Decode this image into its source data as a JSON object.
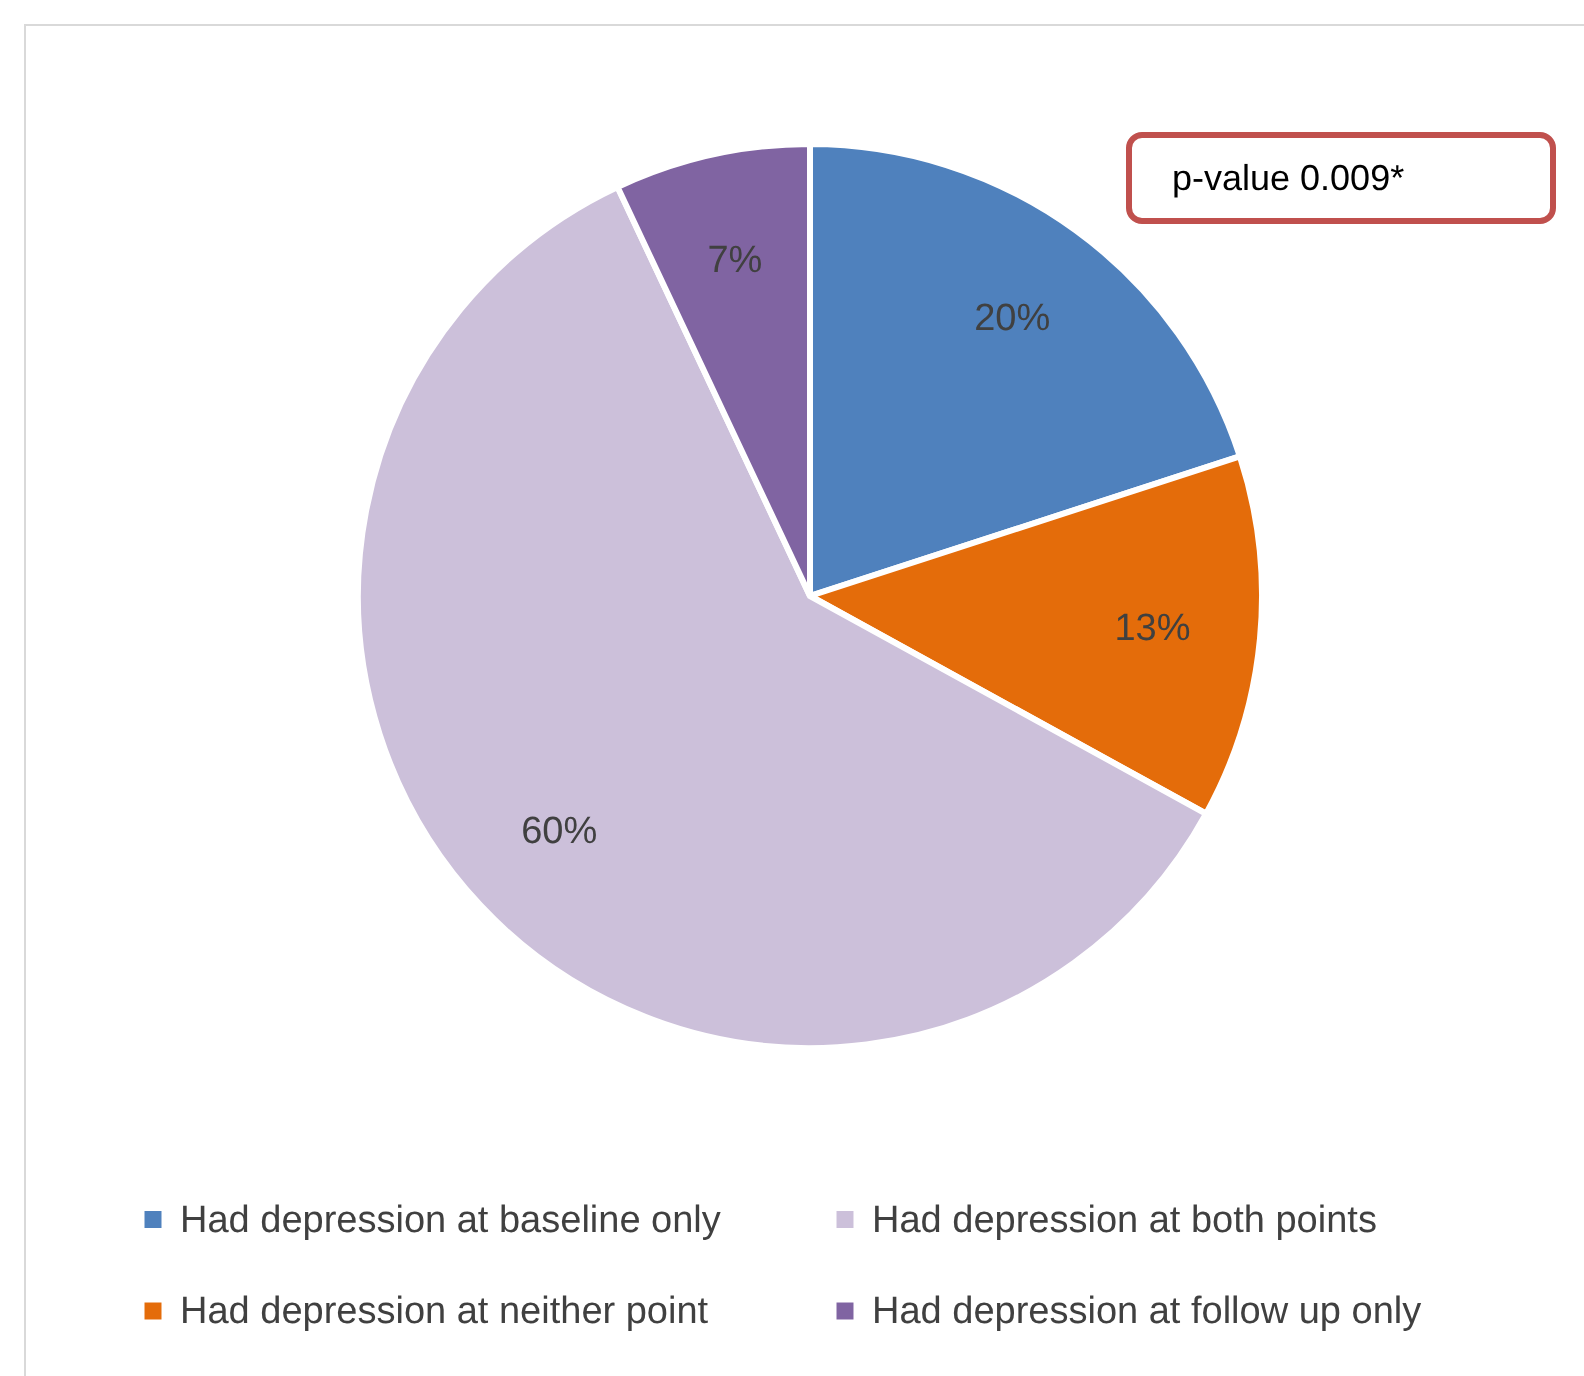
{
  "chart_data": {
    "type": "pie",
    "categories": [
      "Had depression at baseline only",
      "Had depression at neither point",
      "Had depression at both points",
      "Had depression at follow up only"
    ],
    "values": [
      20,
      13,
      60,
      7
    ],
    "value_labels": [
      "20%",
      "13%",
      "60%",
      "7%"
    ],
    "colors": [
      "#4f81bd",
      "#e46c0a",
      "#ccc0da",
      "#8064a2"
    ],
    "legend": "bottom",
    "annotations": [
      "p-value 0.009*"
    ]
  }
}
